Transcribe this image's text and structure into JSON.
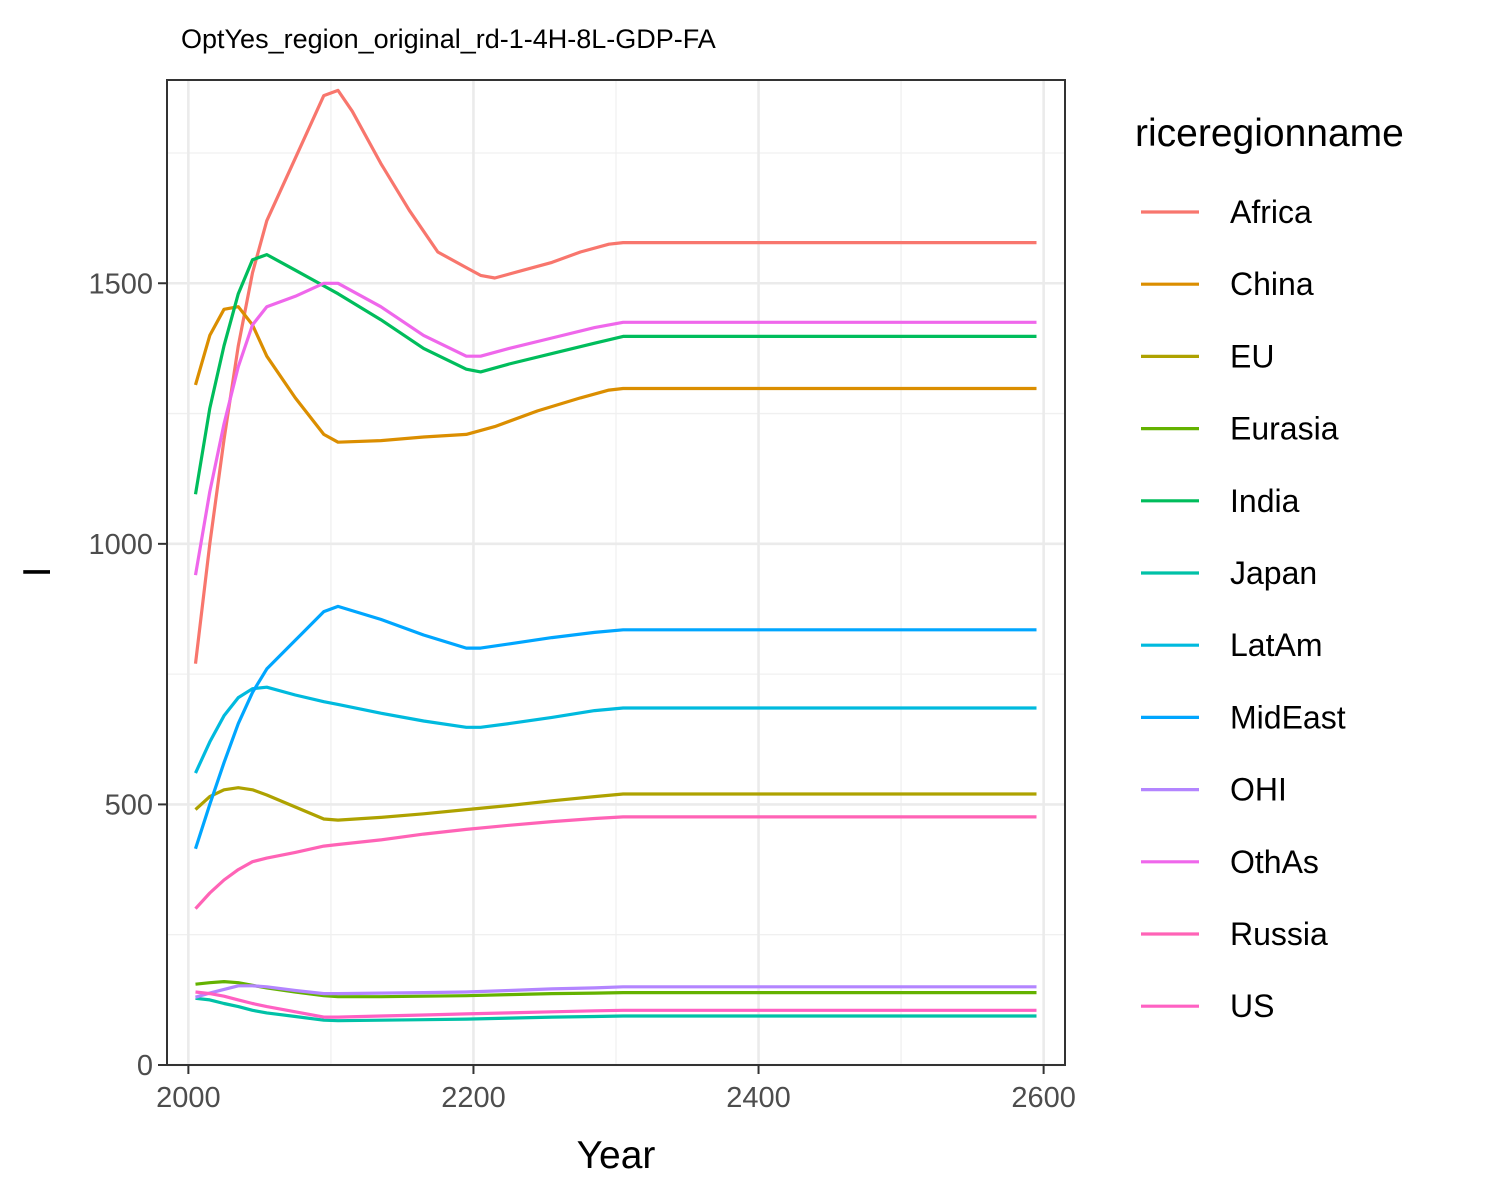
{
  "chart_data": {
    "type": "line",
    "title": "OptYes_region_original_rd-1-4H-8L-GDP-FA",
    "xlabel": "Year",
    "ylabel": "I",
    "xlim": [
      1985,
      2615
    ],
    "ylim": [
      0,
      1890
    ],
    "x_ticks": [
      2000,
      2200,
      2400,
      2600
    ],
    "y_ticks": [
      0,
      500,
      1000,
      1500
    ],
    "grid": true,
    "legend_title": "riceregionname",
    "legend_position": "right",
    "series": [
      {
        "name": "Africa",
        "color": "#F8766D",
        "x": [
          2005,
          2015,
          2025,
          2035,
          2045,
          2055,
          2075,
          2095,
          2105,
          2115,
          2135,
          2155,
          2175,
          2195,
          2205,
          2215,
          2235,
          2255,
          2275,
          2295,
          2305,
          2595
        ],
        "y": [
          770,
          1000,
          1200,
          1380,
          1520,
          1620,
          1740,
          1860,
          1870,
          1830,
          1730,
          1640,
          1560,
          1530,
          1515,
          1510,
          1525,
          1540,
          1560,
          1575,
          1578,
          1578
        ]
      },
      {
        "name": "China",
        "color": "#DB8E00",
        "x": [
          2005,
          2015,
          2025,
          2035,
          2045,
          2055,
          2075,
          2095,
          2105,
          2135,
          2165,
          2195,
          2215,
          2245,
          2275,
          2295,
          2305,
          2595
        ],
        "y": [
          1305,
          1400,
          1450,
          1455,
          1420,
          1360,
          1280,
          1210,
          1195,
          1198,
          1205,
          1210,
          1225,
          1255,
          1280,
          1295,
          1298,
          1298
        ]
      },
      {
        "name": "EU",
        "color": "#AEA200",
        "x": [
          2005,
          2015,
          2025,
          2035,
          2045,
          2055,
          2075,
          2095,
          2105,
          2135,
          2165,
          2195,
          2225,
          2255,
          2285,
          2305,
          2595
        ],
        "y": [
          490,
          515,
          528,
          532,
          528,
          518,
          495,
          472,
          470,
          475,
          482,
          490,
          498,
          507,
          515,
          520,
          520
        ]
      },
      {
        "name": "Eurasia",
        "color": "#64B200",
        "x": [
          2005,
          2015,
          2025,
          2035,
          2045,
          2055,
          2075,
          2095,
          2105,
          2135,
          2165,
          2195,
          2225,
          2255,
          2285,
          2305,
          2595
        ],
        "y": [
          155,
          158,
          160,
          158,
          153,
          148,
          140,
          133,
          131,
          131,
          132,
          133,
          135,
          137,
          138,
          139,
          139
        ]
      },
      {
        "name": "India",
        "color": "#00BD5C",
        "x": [
          2005,
          2015,
          2025,
          2035,
          2045,
          2055,
          2075,
          2095,
          2105,
          2135,
          2165,
          2195,
          2205,
          2225,
          2255,
          2285,
          2305,
          2595
        ],
        "y": [
          1095,
          1260,
          1380,
          1480,
          1545,
          1555,
          1525,
          1495,
          1480,
          1430,
          1375,
          1335,
          1330,
          1345,
          1365,
          1385,
          1398,
          1398
        ]
      },
      {
        "name": "Japan",
        "color": "#00C1A7",
        "x": [
          2005,
          2015,
          2025,
          2035,
          2045,
          2055,
          2075,
          2095,
          2105,
          2135,
          2165,
          2195,
          2225,
          2255,
          2285,
          2305,
          2595
        ],
        "y": [
          128,
          125,
          118,
          112,
          105,
          100,
          93,
          86,
          85,
          86,
          87,
          88,
          90,
          92,
          93,
          94,
          94
        ]
      },
      {
        "name": "LatAm",
        "color": "#00BADE",
        "x": [
          2005,
          2015,
          2025,
          2035,
          2045,
          2055,
          2075,
          2095,
          2105,
          2135,
          2165,
          2195,
          2205,
          2225,
          2255,
          2285,
          2305,
          2595
        ],
        "y": [
          560,
          620,
          670,
          705,
          722,
          725,
          710,
          697,
          692,
          675,
          660,
          648,
          648,
          655,
          667,
          680,
          685,
          685
        ]
      },
      {
        "name": "MidEast",
        "color": "#00A6FF",
        "x": [
          2005,
          2015,
          2025,
          2035,
          2045,
          2055,
          2075,
          2095,
          2105,
          2135,
          2165,
          2195,
          2205,
          2225,
          2255,
          2285,
          2305,
          2595
        ],
        "y": [
          415,
          500,
          580,
          655,
          715,
          760,
          815,
          870,
          880,
          855,
          825,
          800,
          800,
          808,
          820,
          830,
          835,
          835
        ]
      },
      {
        "name": "OHI",
        "color": "#B385FF",
        "x": [
          2005,
          2015,
          2025,
          2035,
          2045,
          2055,
          2075,
          2095,
          2105,
          2135,
          2165,
          2195,
          2225,
          2255,
          2285,
          2305,
          2595
        ],
        "y": [
          130,
          138,
          145,
          152,
          152,
          150,
          143,
          137,
          137,
          138,
          139,
          140,
          143,
          146,
          148,
          150,
          150
        ]
      },
      {
        "name": "OthAs",
        "color": "#EF67EB",
        "x": [
          2005,
          2015,
          2025,
          2035,
          2045,
          2055,
          2075,
          2095,
          2105,
          2135,
          2165,
          2195,
          2205,
          2225,
          2255,
          2285,
          2305,
          2595
        ],
        "y": [
          940,
          1100,
          1230,
          1340,
          1420,
          1455,
          1475,
          1500,
          1500,
          1455,
          1400,
          1360,
          1360,
          1375,
          1395,
          1415,
          1425,
          1425
        ]
      },
      {
        "name": "Russia",
        "color": "#FF63B6",
        "x": [
          2005,
          2015,
          2025,
          2035,
          2045,
          2055,
          2075,
          2095,
          2105,
          2135,
          2165,
          2195,
          2225,
          2255,
          2285,
          2305,
          2595
        ],
        "y": [
          300,
          330,
          355,
          375,
          390,
          397,
          408,
          420,
          423,
          432,
          443,
          452,
          460,
          467,
          473,
          476,
          476
        ]
      },
      {
        "name": "US",
        "color": "#FF61C3",
        "x": [
          2005,
          2015,
          2025,
          2035,
          2045,
          2055,
          2075,
          2095,
          2105,
          2135,
          2165,
          2195,
          2225,
          2255,
          2285,
          2305,
          2595
        ],
        "y": [
          140,
          137,
          132,
          125,
          118,
          112,
          102,
          92,
          92,
          94,
          96,
          98,
          100,
          102,
          104,
          105,
          105
        ]
      }
    ]
  }
}
